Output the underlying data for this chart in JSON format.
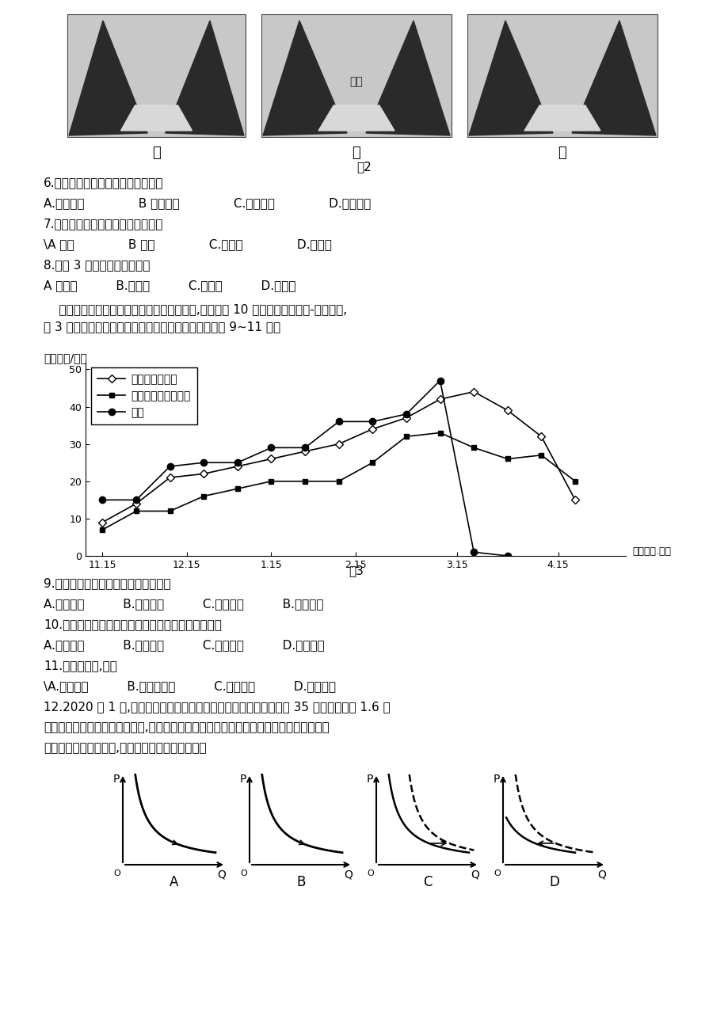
{
  "page_bg": "#ffffff",
  "fig2_caption": "图2",
  "fig2_labels": [
    "甲",
    "乙",
    "丙"
  ],
  "fig2_sublabel": "冰川",
  "q6": "6.丙图中谷地形成的主要外力作用是",
  "q6c": "A.流水侵蚀              B 冰川侵蚀              C.风力侵蚀              D.海浪侵蚀",
  "q7": "7.图示地区还容易形成的地理事物是",
  "q7c": "\\A 峡湾              B 溶洞              C.冲积扇              D.蘑菇石",
  "q8": "8.图示 3 个时期的先后顺序是",
  "q8c": "A 申乙丙          B.甲丙乙          C.乙甲丙          D.乙丙甲",
  "intro1": "    某年我国某科研队在某实验区选择三种地面,观测了近 10 场降雪的地面积雪-融雪过程,",
  "intro2": "图 3 为种地面积雪厚度随时间变化的状况图。据此完成 9~11 题。",
  "ylabel": "积雪厚度/厘米",
  "fig3_caption": "图3",
  "date_label": "日期（月.日）",
  "xticklabels": [
    "11.15",
    "12.15",
    "1.15",
    "2.15",
    "3.15",
    "4.15"
  ],
  "yticks": [
    0,
    10,
    20,
    30,
    40,
    50
  ],
  "legend_labels": [
    "落叶松人工林地",
    "樟子松常绿原始林地",
    "裸地"
  ],
  "s1_x": [
    0,
    1,
    2,
    3,
    4,
    5,
    6,
    7,
    8,
    9,
    10,
    11,
    12,
    13,
    14
  ],
  "s1_y": [
    9,
    14,
    21,
    22,
    24,
    26,
    28,
    30,
    34,
    37,
    42,
    44,
    39,
    32,
    15
  ],
  "s2_x": [
    0,
    1,
    2,
    3,
    4,
    5,
    6,
    7,
    8,
    9,
    10,
    11,
    12,
    13,
    14
  ],
  "s2_y": [
    7,
    12,
    12,
    16,
    18,
    20,
    20,
    20,
    25,
    32,
    33,
    29,
    26,
    27,
    20
  ],
  "s3_x": [
    0,
    1,
    2,
    3,
    4,
    5,
    6,
    7,
    8,
    9,
    10,
    11,
    12
  ],
  "s3_y": [
    15,
    15,
    24,
    25,
    25,
    29,
    29,
    36,
    36,
    38,
    47,
    1,
    0
  ],
  "q9": "9.该试验区最有可能位于我国的地区是",
  "q9c": "A.华北地区          B.东北地区          C.西南地区          B.西北地区",
  "q10": "10.影响实验区内三种地面积雪深度差异的主要因素是",
  "q10c": "A.降雪总量          B.山地坡向          C.林冠截留          D.林内风速",
  "q11": "11.与裸地相比,林地",
  "q11c": "\\A.降温较快          B.增加融雪量          C.加速融雪          D.延长春汛",
  "q12a": "12.2020 年 1 月,国务院出台文件鼓励有条件的地区对农村居民购买 35 吨及以下货车 1.6 升",
  "q12b": "及以下排量乘用车给予补贴奖励,这可能引发政策实施地区农村居民对相关车型的需求发生",
  "q12c": "变化。不考虑其他因素,正确反映这一变化的图示是",
  "abcd_labels": [
    "A",
    "B",
    "C",
    "D"
  ],
  "font_size_main": 11,
  "font_size_small": 9
}
